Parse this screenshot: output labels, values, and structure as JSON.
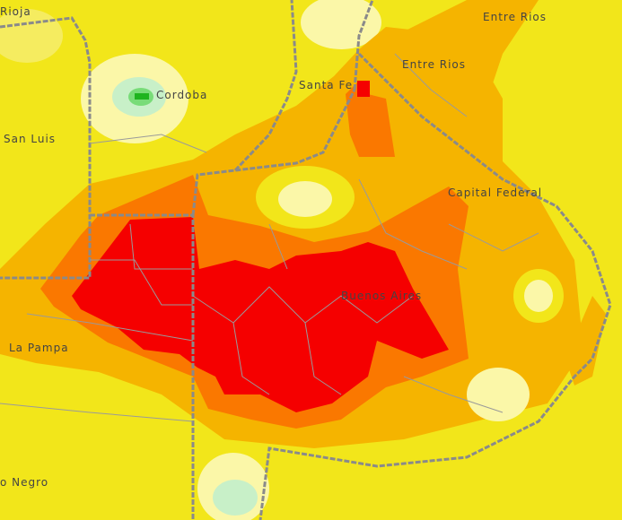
{
  "map": {
    "labels": {
      "rioja": "Rioja",
      "entre_rios_top": "Entre Rios",
      "entre_rios": "Entre Rios",
      "santa_fe": "Santa Fe",
      "cordoba": "Cordoba",
      "san_luis": "San Luis",
      "capital_federal": "Capital Federal",
      "buenos_aires": "Buenos Aires",
      "la_pampa": "La Pampa",
      "rio_negro": "o Negro"
    },
    "colors": {
      "yellow": "#f2e61a",
      "light_yellow": "#fbf7a8",
      "orange": "#f5b400",
      "dark_orange": "#fa7800",
      "red": "#f50000",
      "light_green": "#c8f0c8",
      "green": "#32c832",
      "border": "#8a8a8a"
    }
  }
}
